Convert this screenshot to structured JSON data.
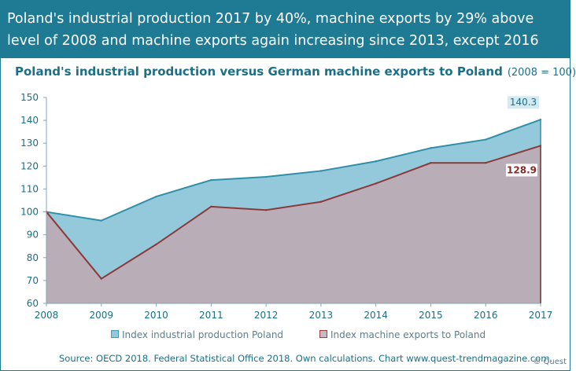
{
  "header": {
    "line1": "Poland's industrial production 2017 by 40%, machine exports by 29% above",
    "line2": "level of 2008 and machine exports again increasing since 2013,  except 2016"
  },
  "subtitle": {
    "main": "Poland's industrial production versus German machine exports to Poland",
    "note": "(2008 = 100)"
  },
  "chart_data": {
    "type": "area",
    "x": [
      2008,
      2009,
      2010,
      2011,
      2012,
      2013,
      2014,
      2015,
      2016,
      2017
    ],
    "ylim": [
      60,
      150
    ],
    "yticks": [
      60,
      70,
      80,
      90,
      100,
      110,
      120,
      130,
      140,
      150
    ],
    "series": [
      {
        "name": "Index industrial production Poland",
        "values": [
          100,
          96.2,
          106.7,
          113.9,
          115.3,
          117.9,
          122.1,
          127.9,
          131.6,
          140.3
        ],
        "fill": "#93c9da",
        "line": "#2f8fa8",
        "end_label": "140.3"
      },
      {
        "name": "Index machine exports to Poland",
        "values": [
          100,
          70.8,
          85.8,
          102.3,
          100.8,
          104.4,
          112.4,
          121.4,
          121.4,
          128.9
        ],
        "fill": "#b9adb7",
        "line": "#8b3a3a",
        "end_label": "128.9"
      }
    ],
    "grid": false,
    "legend": "bottom"
  },
  "legend": {
    "item1": "Index industrial production Poland",
    "item2": "Index machine exports to Poland"
  },
  "footer": {
    "source": "Source: OECD 2018.  Federal Statistical Office 2018.  Own calculations. Chart www.quest-trendmagazine.com.",
    "copyright": "© Quest"
  }
}
